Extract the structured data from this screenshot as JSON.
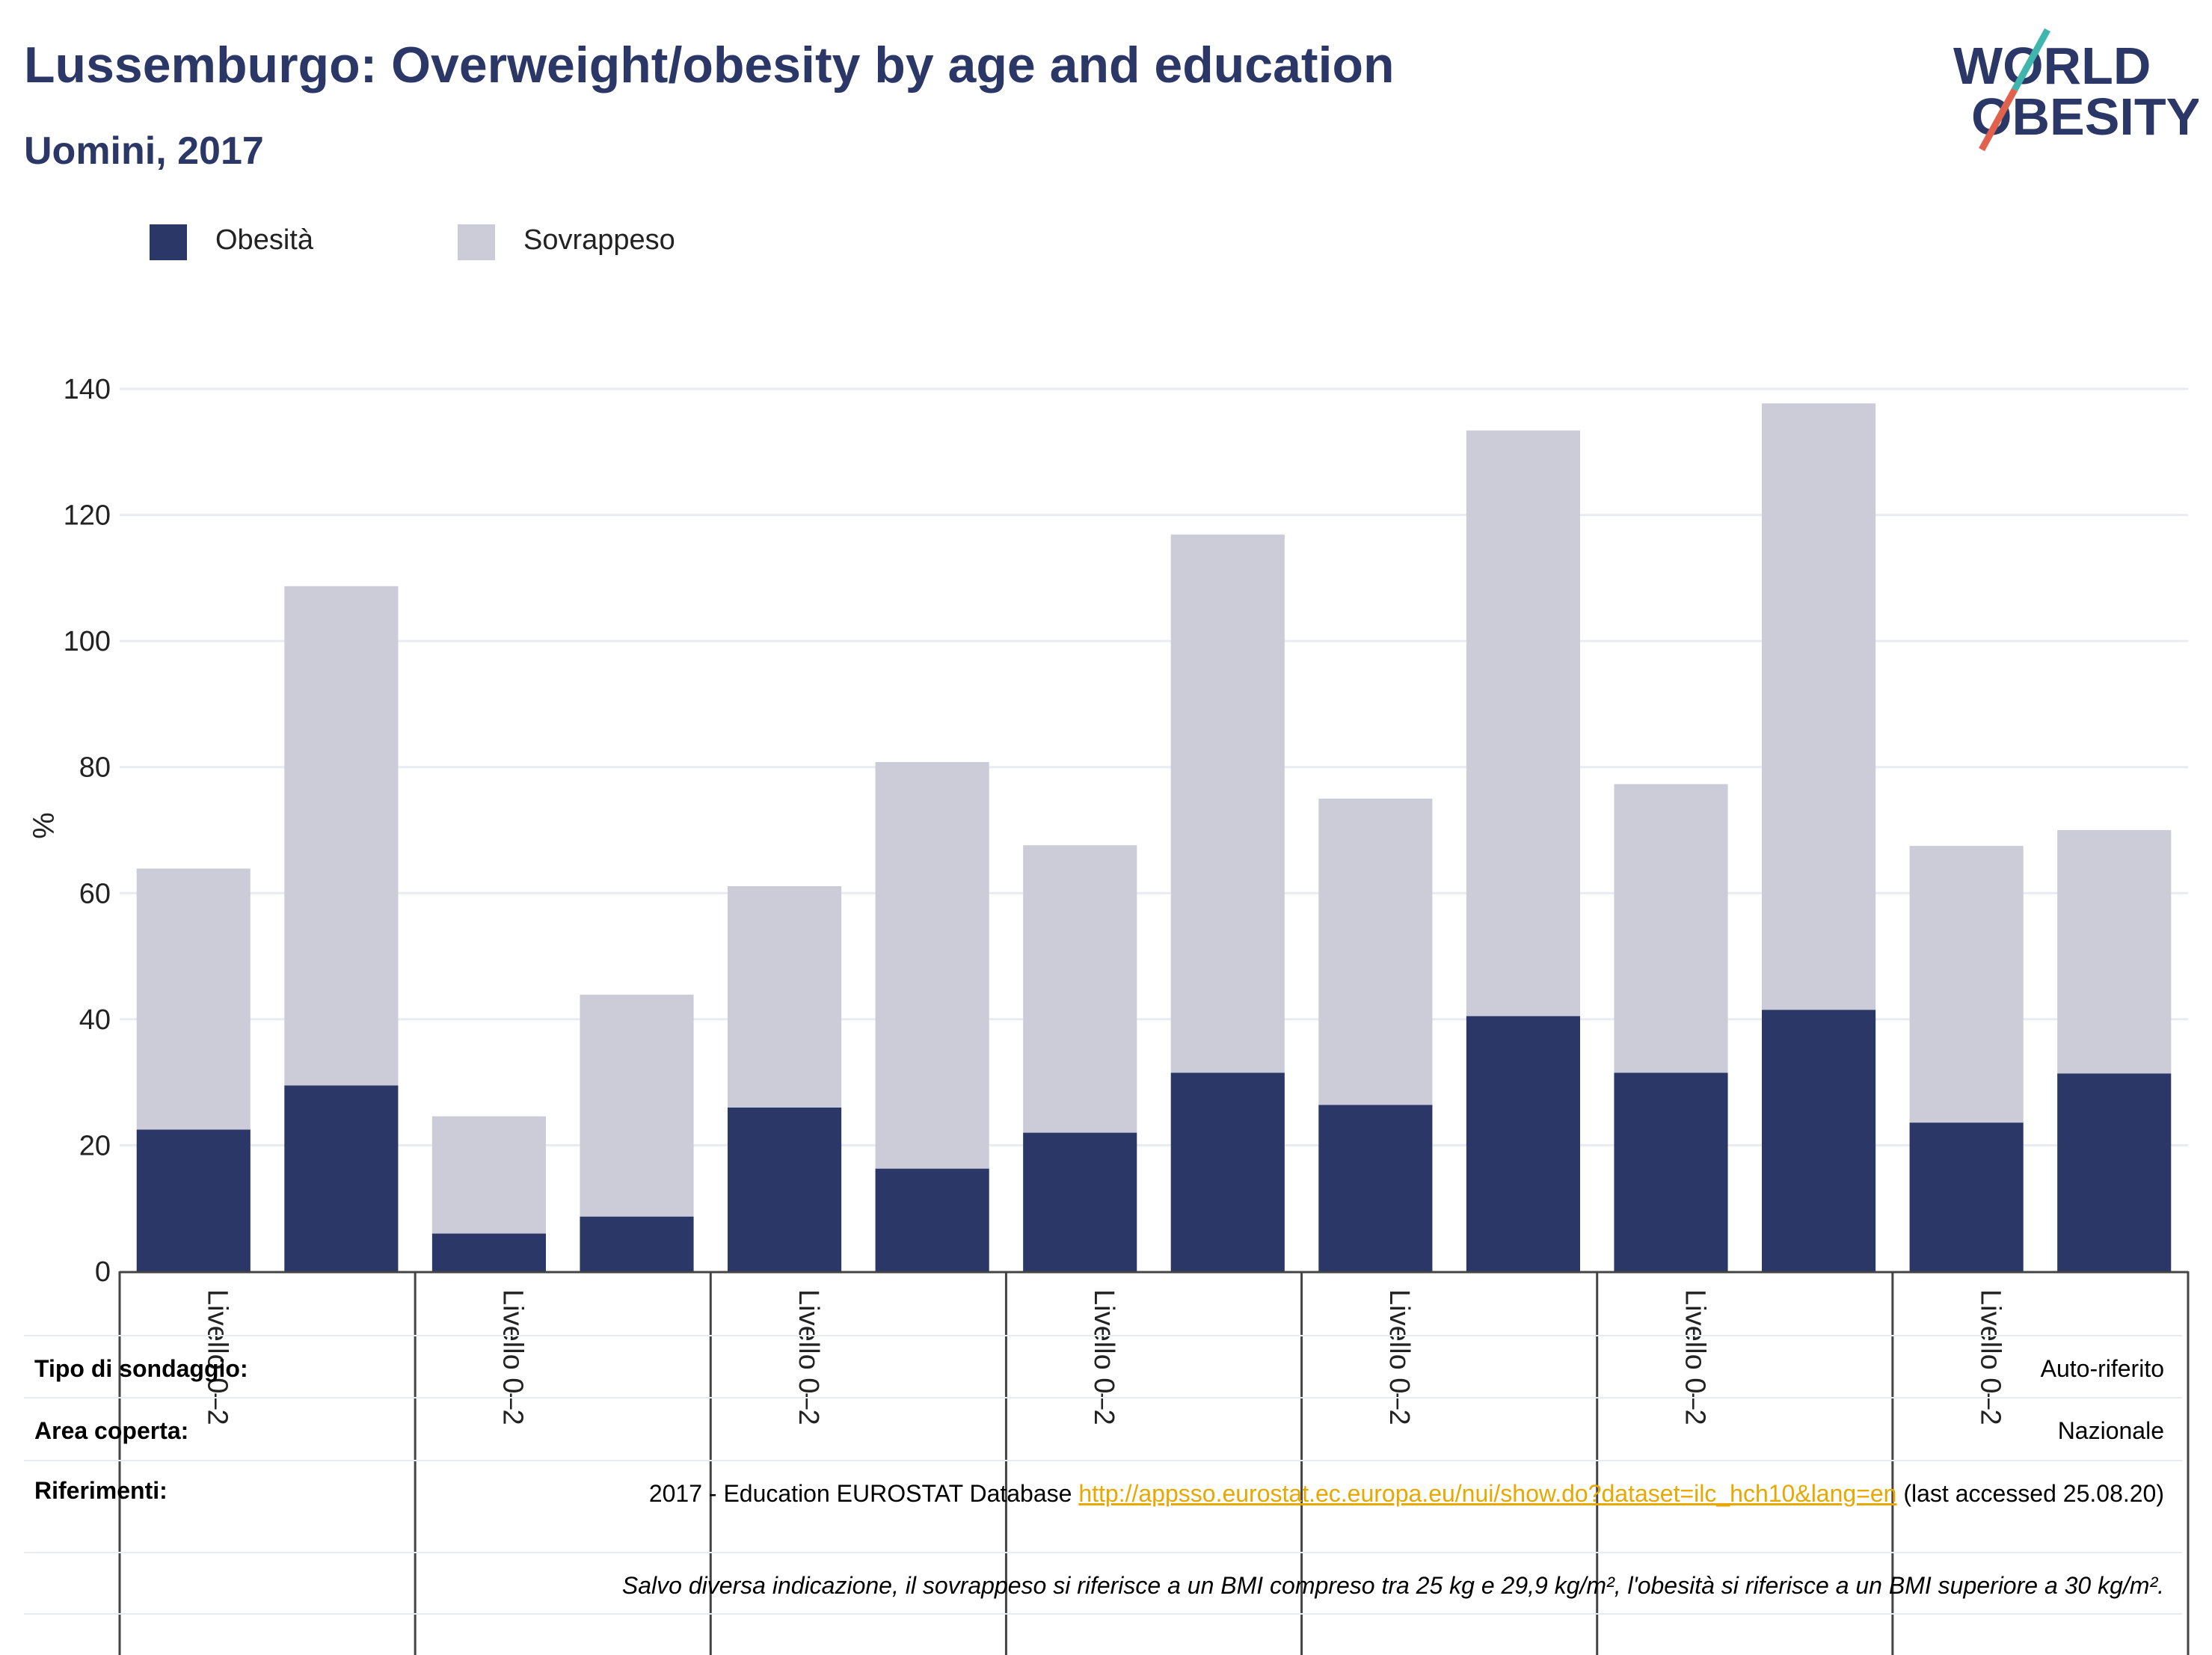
{
  "title": "Lussemburgo: Overweight/obesity by age and education",
  "subtitle": "Uomini, 2017",
  "logo": {
    "line1": "WORLD",
    "line2": "OBESITY"
  },
  "colors": {
    "obesity": "#2b3766",
    "overweight": "#cbccd8",
    "title": "#2b3766",
    "link": "#e8a800"
  },
  "legend": [
    {
      "label": "Obesità",
      "color": "#2b3766"
    },
    {
      "label": "Sovrappeso",
      "color": "#cbccd8"
    }
  ],
  "chart_data": {
    "type": "bar",
    "stacked": true,
    "ylabel": "%",
    "ylim": [
      0,
      140
    ],
    "yticks": [
      0,
      20,
      40,
      60,
      80,
      100,
      120,
      140
    ],
    "grid": true,
    "legend_position": "top-left",
    "group_labels": [
      "Livello 0–2",
      "Livello 0–2",
      "Livello 0–2",
      "Livello 0–2",
      "Livello 0–2",
      "Livello 0–2",
      "Livello 0–2"
    ],
    "series": [
      {
        "name": "Obesità",
        "values": [
          22.5,
          29.5,
          6.0,
          8.7,
          26.0,
          16.3,
          22.0,
          31.5,
          26.4,
          40.5,
          31.5,
          41.5,
          23.6,
          31.4
        ]
      },
      {
        "name": "Sovrappeso",
        "values": [
          41.4,
          79.2,
          18.6,
          35.2,
          35.1,
          64.5,
          45.6,
          85.4,
          48.6,
          92.9,
          45.8,
          96.2,
          43.9,
          38.6
        ]
      }
    ]
  },
  "footer": {
    "survey_type_label": "Tipo di sondaggio:",
    "survey_type_value": "Auto-riferito",
    "area_label": "Area coperta:",
    "area_value": "Nazionale",
    "references_label": "Riferimenti:",
    "references_text": "2017 - Education EUROSTAT Database",
    "references_link": "http://appsso.eurostat.ec.europa.eu/nui/show.do?dataset=ilc_hch10&lang=en",
    "references_suffix": "(last accessed 25.08.20)",
    "note": "Salvo diversa indicazione, il sovrappeso si riferisce a un BMI compreso tra 25 kg e 29,9 kg/m², l'obesità si riferisce a un BMI superiore a 30 kg/m²."
  }
}
